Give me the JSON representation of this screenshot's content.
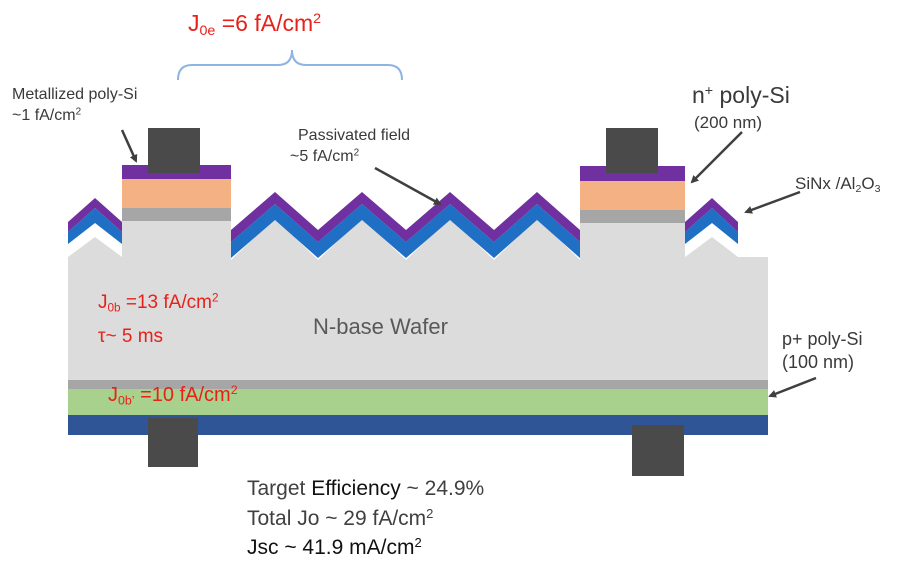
{
  "labels": {
    "j0e": {
      "main": "J",
      "sub": "0e",
      "rest": " =6 fA/cm",
      "sup": "2"
    },
    "metallized": {
      "line1": "Metallized poly-Si",
      "line2_pre": "~1 fA/cm",
      "line2_sup": "2"
    },
    "passivated": {
      "line1": "Passivated field",
      "line2_pre": "~5 fA/cm",
      "line2_sup": "2"
    },
    "npoly": {
      "pre": "n",
      "sup": "+",
      "rest": " poly-Si",
      "line2": "(200 nm)"
    },
    "sinx": {
      "pre": "SiNx /Al",
      "sub1": "2",
      "mid": "O",
      "sub2": "3"
    },
    "j0b": {
      "main": "J",
      "sub": "0b",
      "rest": " =13 fA/cm",
      "sup": "2"
    },
    "tau": {
      "text": "τ~ 5 ms"
    },
    "wafer": {
      "text": "N-base Wafer"
    },
    "ppoly": {
      "line1": "p+ poly-Si",
      "line2": "(100 nm)"
    },
    "j0b_prime": {
      "main": "J",
      "sub": "0b’",
      "rest": " =10 fA/cm",
      "sup": "2"
    },
    "target": {
      "pre": "Target ",
      "word": "Efficiency",
      "post": " ~ 24.9%"
    },
    "total": {
      "pre": "Total Jo ~ 29 fA/cm",
      "sup": "2"
    },
    "jsc": {
      "pre": "Jsc ~ 41.9 mA/cm",
      "sup": "2"
    }
  },
  "colors": {
    "text_red": "#e8201a",
    "wafer_gray": "#dcdcdc",
    "al2o3_purple": "#7030a0",
    "sinx_blue": "#1f6fc5",
    "n_poly_orange": "#f4b183",
    "thin_oxide_gray": "#a6a6a6",
    "p_poly_green": "#a9d18e",
    "rear_dielectric_blue": "#2f5597",
    "contact_metal": "#4a4a4a",
    "bracket_blue": "#8eb4e3"
  }
}
